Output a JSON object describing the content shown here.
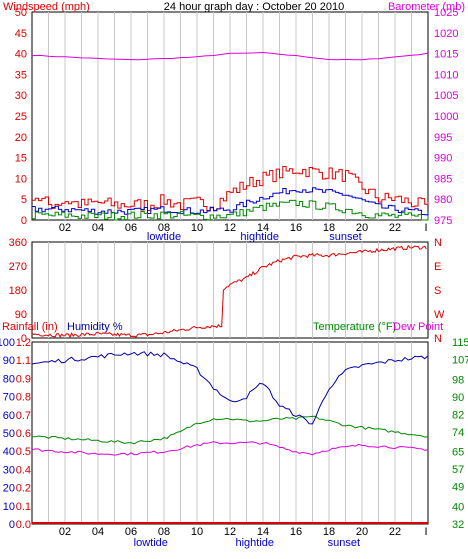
{
  "colors": {
    "wind": "#dd0000",
    "gust": "#dd0000",
    "avg": "#0000cc",
    "dir": "#dd0000",
    "baro": "#dd00dd",
    "hum": "#0000aa",
    "temp": "#008800",
    "dew": "#dd00dd",
    "rain": "#dd0000",
    "green_axis": "#008800",
    "blue_axis": "#0000cc",
    "grid": "#c8c8c8",
    "frame": "#000000"
  },
  "header": {
    "title": "24 hour graph day : October 20 2010"
  },
  "x_axis": {
    "hours": [
      "02",
      "04",
      "06",
      "08",
      "10",
      "12",
      "14",
      "16",
      "18",
      "20",
      "22"
    ],
    "end_marker": "I",
    "top_events": [
      {
        "label": "lowtide",
        "hour": 8.0
      },
      {
        "label": "hightide",
        "hour": 13.8
      },
      {
        "label": "sunset",
        "hour": 19.0
      }
    ],
    "bottom_events": [
      {
        "label": "lowtide",
        "hour": 7.2
      },
      {
        "label": "hightide",
        "hour": 13.5
      },
      {
        "label": "sunset",
        "hour": 18.9
      }
    ]
  },
  "chart_data": [
    {
      "type": "line",
      "name": "wind_barometer",
      "left_axis_label": "Windspeed (mph)",
      "right_axis_label": "Barometer (mb)",
      "left_ticks": [
        0,
        5,
        10,
        15,
        20,
        25,
        30,
        35,
        40,
        45,
        50
      ],
      "right_ticks": [
        975,
        980,
        985,
        990,
        995,
        1000,
        1005,
        1010,
        1015,
        1020,
        1025
      ],
      "ylim": [
        0,
        50
      ],
      "right_ylim": [
        975,
        1025
      ],
      "xlim": [
        0,
        24
      ],
      "barometer": {
        "x": [
          0,
          2,
          4,
          6,
          8,
          10,
          12,
          14,
          16,
          18,
          20,
          22,
          24
        ],
        "y": [
          1014.6,
          1014.2,
          1013.8,
          1013.5,
          1013.8,
          1014.2,
          1015.0,
          1015.2,
          1014.5,
          1013.6,
          1013.5,
          1014.2,
          1015.0
        ]
      },
      "gust": {
        "x": [
          0,
          1,
          2,
          3,
          4,
          5,
          6,
          7,
          8,
          9,
          10,
          11,
          12,
          13,
          14,
          15,
          16,
          17,
          18,
          19,
          20,
          21,
          22,
          23,
          24
        ],
        "y": [
          6.0,
          3.5,
          4.5,
          3.5,
          4.0,
          3.5,
          3.5,
          3.5,
          4.5,
          3.5,
          4.0,
          3.5,
          6.5,
          8.5,
          10.0,
          11.0,
          12.0,
          11.5,
          11.0,
          10.5,
          7.5,
          5.0,
          5.0,
          4.0,
          3.0
        ]
      },
      "avg": {
        "x": [
          0,
          2,
          4,
          6,
          8,
          10,
          12,
          13,
          14,
          15,
          16,
          17,
          18,
          19,
          20,
          21,
          22,
          24
        ],
        "y": [
          2.5,
          2.5,
          2.0,
          2.0,
          2.5,
          2.0,
          2.5,
          4.0,
          5.5,
          6.5,
          7.5,
          7.0,
          6.5,
          6.0,
          4.5,
          3.0,
          2.5,
          1.5
        ]
      },
      "wind": {
        "x": [
          0,
          2,
          4,
          6,
          8,
          10,
          12,
          13,
          14,
          15,
          16,
          17,
          18,
          19,
          20,
          21,
          22,
          24
        ],
        "y": [
          1.0,
          1.0,
          0.8,
          1.0,
          1.2,
          0.8,
          1.0,
          2.0,
          3.0,
          3.5,
          4.0,
          3.5,
          3.0,
          2.5,
          1.5,
          1.0,
          0.8,
          0.5
        ]
      }
    },
    {
      "type": "line",
      "name": "wind_direction",
      "left_ticks": [
        0,
        90,
        180,
        270,
        360
      ],
      "right_ticks": [
        "N",
        "E",
        "S",
        "W",
        "N"
      ],
      "ylim": [
        0,
        360
      ],
      "xlim": [
        0,
        24
      ],
      "direction": {
        "x": [
          0,
          2,
          4,
          6,
          7,
          8,
          9,
          10,
          11,
          11.5,
          11.6,
          12,
          13,
          14,
          15,
          16,
          17,
          18,
          19,
          20,
          21,
          22,
          23,
          24
        ],
        "y": [
          15,
          10,
          15,
          10,
          12,
          20,
          30,
          40,
          45,
          45,
          185,
          200,
          225,
          265,
          290,
          305,
          310,
          310,
          318,
          322,
          330,
          335,
          340,
          340
        ]
      }
    },
    {
      "type": "line",
      "name": "rain_humidity_temperature",
      "rain_axis_label": "Rainfall (in)",
      "humidity_axis_label": "Humidity %",
      "temperature_axis_label": "Temperature (°F)",
      "dewpoint_axis_label": "Dew Point",
      "humidity_ticks": [
        0,
        10,
        20,
        30,
        40,
        50,
        60,
        70,
        80,
        90,
        100
      ],
      "rain_ticks": [
        "0.0",
        "0.1",
        "0.2",
        "0.4",
        "0.5",
        "0.6",
        "0.7",
        "0.8",
        "0.9",
        "1.1",
        "1.2"
      ],
      "temperature_ticks": [
        32,
        40,
        49,
        57,
        65,
        74,
        82,
        90,
        98,
        107,
        115
      ],
      "ylim": [
        0,
        100
      ],
      "temperature_ylim": [
        32,
        115
      ],
      "xlim": [
        0,
        24
      ],
      "humidity": {
        "x": [
          0,
          2,
          4,
          6,
          8,
          10,
          11,
          12,
          13,
          14,
          15,
          16,
          17,
          18,
          19,
          20,
          22,
          24
        ],
        "y": [
          88,
          90,
          92,
          94,
          93,
          85,
          75,
          67,
          70,
          78,
          65,
          60,
          55,
          75,
          84,
          87,
          90,
          92
        ]
      },
      "temperature": {
        "x": [
          0,
          2,
          4,
          6,
          8,
          9,
          10,
          11,
          12,
          13,
          14,
          15,
          16,
          17,
          18,
          19,
          20,
          22,
          24
        ],
        "y": [
          72,
          71,
          70,
          69,
          71,
          74,
          78,
          80,
          80,
          79,
          79,
          80,
          80,
          81,
          79,
          77,
          76,
          74,
          72
        ]
      },
      "dewpoint": {
        "x": [
          0,
          2,
          4,
          6,
          8,
          10,
          11,
          12,
          14,
          15,
          16,
          17,
          18,
          19,
          20,
          22,
          24
        ],
        "y": [
          66,
          65,
          64,
          64,
          65,
          68,
          69,
          69,
          69,
          67,
          65,
          64,
          66,
          67,
          68,
          67,
          66
        ]
      },
      "rainfall": {
        "x": [
          0,
          24
        ],
        "y": [
          0,
          0
        ]
      }
    }
  ]
}
